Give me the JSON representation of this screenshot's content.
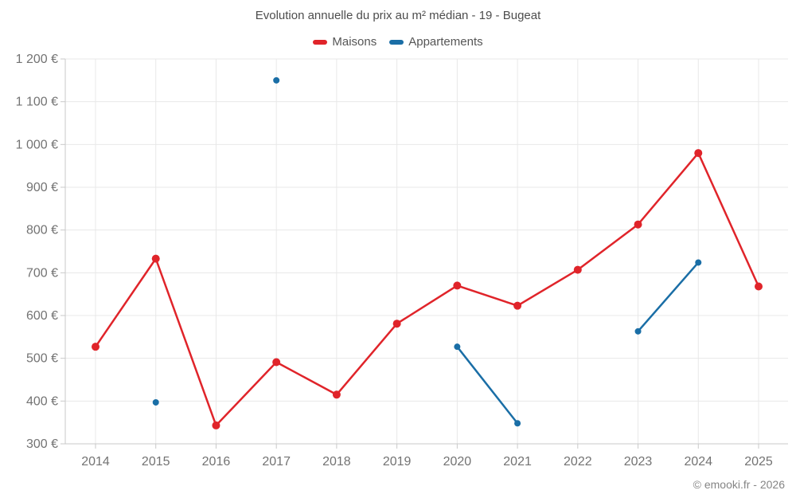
{
  "title": "Evolution annuelle du prix au m² médian - 19 - Bugeat",
  "legend": {
    "items": [
      {
        "label": "Maisons",
        "color": "#e0242a"
      },
      {
        "label": "Appartements",
        "color": "#1a6ea6"
      }
    ]
  },
  "footer": "© emooki.fr - 2026",
  "colors": {
    "background": "#ffffff",
    "grid": "#e8e8e8",
    "axis": "#c9c9c9",
    "tick_label": "#737373",
    "title": "#4d4d4d",
    "footer": "#858585"
  },
  "chart_data": {
    "type": "line",
    "title": "Evolution annuelle du prix au m² médian - 19 - Bugeat",
    "xlabel": "",
    "ylabel": "",
    "categories": [
      "2014",
      "2015",
      "2016",
      "2017",
      "2018",
      "2019",
      "2020",
      "2021",
      "2022",
      "2023",
      "2024",
      "2025"
    ],
    "series": [
      {
        "name": "Maisons",
        "color": "#e0242a",
        "marker_radius": 5,
        "values": [
          527,
          733,
          343,
          491,
          415,
          581,
          670,
          623,
          707,
          813,
          980,
          668
        ]
      },
      {
        "name": "Appartements",
        "color": "#1a6ea6",
        "marker_radius": 4,
        "values": [
          null,
          397,
          null,
          1150,
          null,
          null,
          527,
          348,
          null,
          563,
          724,
          null
        ]
      }
    ],
    "ylim": [
      300,
      1200
    ],
    "ytick_values": [
      300,
      400,
      500,
      600,
      700,
      800,
      900,
      1000,
      1100,
      1200
    ],
    "ytick_labels": [
      "300 €",
      "400 €",
      "500 €",
      "600 €",
      "700 €",
      "800 €",
      "900 €",
      "1 000 €",
      "1 100 €",
      "1 200 €"
    ],
    "grid": true,
    "legend_position": "top"
  }
}
